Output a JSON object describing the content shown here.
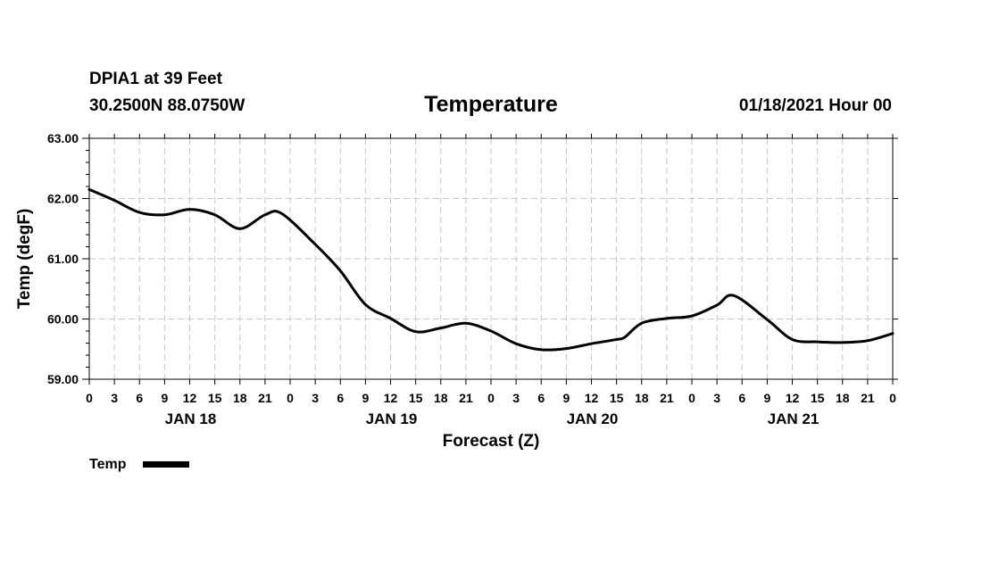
{
  "header": {
    "station": "DPIA1 at 39 Feet",
    "coords": "30.2500N 88.0750W",
    "title": "Temperature",
    "run": "01/18/2021 Hour 00"
  },
  "legend": {
    "label": "Temp",
    "color": "#000000"
  },
  "chart_data": {
    "type": "line",
    "title": "Temperature",
    "xlabel": "Forecast (Z)",
    "ylabel": "Temp (degF)",
    "ylim": [
      59.0,
      63.0
    ],
    "xlim": [
      0,
      96
    ],
    "y_ticks": [
      "59.00",
      "60.00",
      "61.00",
      "62.00",
      "63.00"
    ],
    "x_tick_labels": [
      "0",
      "3",
      "6",
      "9",
      "12",
      "15",
      "18",
      "21",
      "0",
      "3",
      "6",
      "9",
      "12",
      "15",
      "18",
      "21",
      "0",
      "3",
      "6",
      "9",
      "12",
      "15",
      "18",
      "21",
      "0",
      "3",
      "6",
      "9",
      "12",
      "15",
      "18",
      "21",
      "0"
    ],
    "day_labels": [
      {
        "label": "JAN 18",
        "hour": 12
      },
      {
        "label": "JAN 19",
        "hour": 36
      },
      {
        "label": "JAN 20",
        "hour": 60
      },
      {
        "label": "JAN 21",
        "hour": 84
      }
    ],
    "grid": true,
    "series": [
      {
        "name": "Temp",
        "color": "#000000",
        "x": [
          0,
          3,
          6,
          9,
          12,
          15,
          18,
          21,
          23,
          27,
          30,
          33,
          36,
          39,
          42,
          45,
          48,
          51,
          54,
          57,
          60,
          63,
          64,
          66,
          69,
          72,
          75,
          77,
          81,
          84,
          87,
          90,
          93,
          96
        ],
        "y": [
          62.15,
          61.97,
          61.77,
          61.73,
          61.82,
          61.73,
          61.5,
          61.73,
          61.75,
          61.24,
          60.8,
          60.24,
          60.01,
          59.79,
          59.85,
          59.93,
          59.8,
          59.59,
          59.49,
          59.51,
          59.59,
          59.66,
          59.7,
          59.93,
          60.01,
          60.05,
          60.23,
          60.39,
          59.99,
          59.66,
          59.62,
          59.61,
          59.64,
          59.76
        ]
      }
    ]
  }
}
